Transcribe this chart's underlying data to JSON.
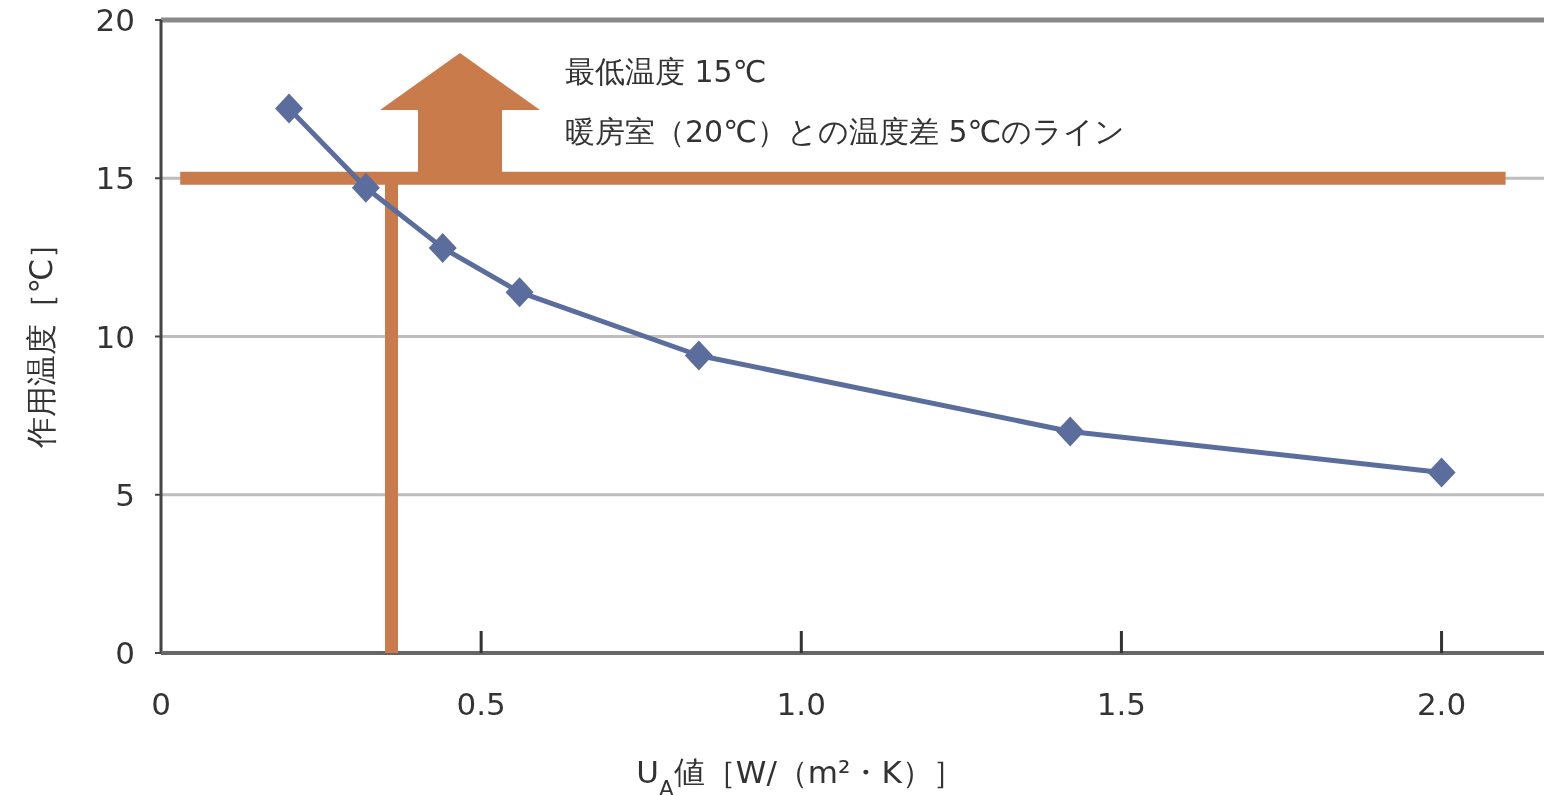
{
  "chart_data": {
    "type": "line",
    "xlabel": "U$_{A}$値［W/（m²・K）］",
    "ylabel": "作用温度［℃］",
    "annotations": [
      "最低温度 15℃",
      "暖房室（20℃）との温度差 5℃のライン"
    ],
    "series": [
      {
        "color": "#5b6d9d",
        "x": [
          0.2,
          0.32,
          0.44,
          0.56,
          0.84,
          1.42,
          2.0
        ],
        "values": [
          17.2,
          14.7,
          12.8,
          11.4,
          9.4,
          7.0,
          5.7
        ]
      }
    ],
    "xlim": [
      0,
      2.16
    ],
    "ylim": [
      0,
      20
    ],
    "xticks": [
      0,
      {
        "value": 0.5,
        "label": "0.5"
      },
      {
        "value": 1,
        "label": "1.0"
      },
      {
        "value": 1.5,
        "label": "1.5"
      },
      {
        "value": 2,
        "label": "2.0"
      }
    ],
    "yticks": [
      0,
      5,
      10,
      15,
      20
    ],
    "grid": "y",
    "marker": "diamond",
    "line_style": "solid",
    "ref_lines": [
      {
        "axis": "y",
        "value": 15,
        "color": "#c97b4b"
      },
      {
        "axis": "x",
        "value": 0.36,
        "color": "#c97b4b"
      }
    ]
  }
}
